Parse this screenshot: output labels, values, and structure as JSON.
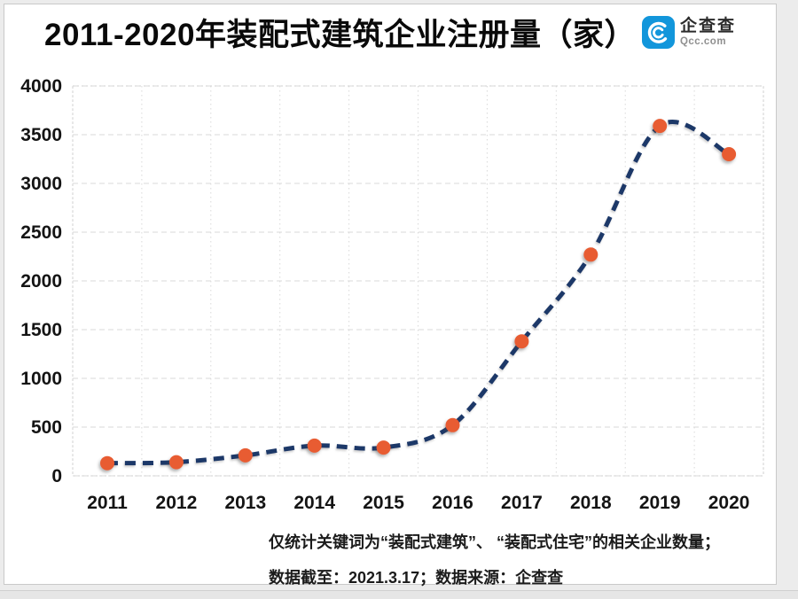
{
  "header": {
    "title": "2011-2020年装配式建筑企业注册量（家）",
    "logo": {
      "name": "企查查",
      "domain": "Qcc.com",
      "brand_color": "#1296db"
    }
  },
  "chart_data": {
    "type": "line",
    "title": "2011-2020年装配式建筑企业注册量（家）",
    "categories": [
      "2011",
      "2012",
      "2013",
      "2014",
      "2015",
      "2016",
      "2017",
      "2018",
      "2019",
      "2020"
    ],
    "values": [
      130,
      140,
      210,
      310,
      290,
      520,
      1380,
      2270,
      3590,
      3300
    ],
    "series_name": "装配式建筑企业注册量",
    "xlabel": "",
    "ylabel": "",
    "ylim": [
      0,
      4000
    ],
    "yticks": [
      0,
      500,
      1000,
      1500,
      2000,
      2500,
      3000,
      3500,
      4000
    ],
    "grid": true,
    "legend": "none",
    "line_style": "dashed",
    "line_color": "#1d3768",
    "marker_color": "#e85c33",
    "grid_color": "#d9d9d9",
    "border_color": "#cfcfcf",
    "tick_color": "#141414"
  },
  "footer": {
    "line1": "仅统计关键词为“装配式建筑”、 “装配式住宅”的相关企业数量；",
    "line2": "数据截至：2021.3.17；数据来源：企查查"
  }
}
